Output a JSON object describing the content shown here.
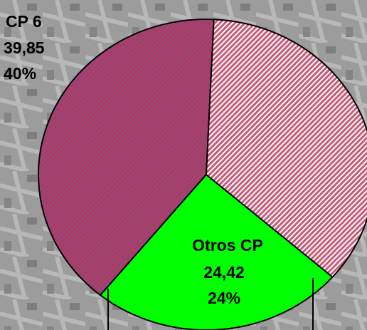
{
  "chart_data": {
    "type": "pie",
    "categories": [
      "CP 6",
      "Otros CP",
      null
    ],
    "values": [
      39.85,
      24.42,
      35.73
    ],
    "value_labels": [
      "39,85",
      "24,42",
      null
    ],
    "percent_labels": [
      "40%",
      "24%",
      null
    ],
    "colors": [
      "#c8304f",
      "#00ff00",
      "#c85a78"
    ],
    "hatch": [
      true,
      false,
      true
    ]
  }
}
